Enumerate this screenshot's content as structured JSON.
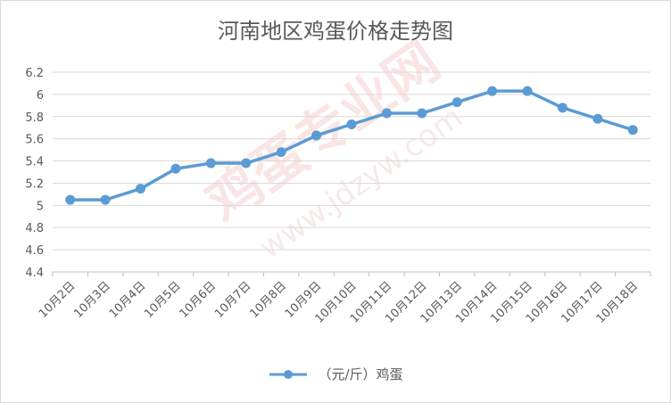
{
  "chart_data": {
    "type": "line",
    "title": "河南地区鸡蛋价格走势图",
    "categories": [
      "10月2日",
      "10月3日",
      "10月4日",
      "10月5日",
      "10月6日",
      "10月7日",
      "10月8日",
      "10月9日",
      "10月10日",
      "10月11日",
      "10月12日",
      "10月13日",
      "10月14日",
      "10月15日",
      "10月16日",
      "10月17日",
      "10月18日"
    ],
    "series": [
      {
        "name": "（元/斤）鸡蛋",
        "values": [
          5.05,
          5.05,
          5.15,
          5.33,
          5.38,
          5.38,
          5.48,
          5.63,
          5.73,
          5.83,
          5.83,
          5.93,
          6.03,
          6.03,
          5.88,
          5.78,
          5.68
        ]
      }
    ],
    "ylim": [
      4.4,
      6.2
    ],
    "yticks": [
      "4.4",
      "4.6",
      "4.8",
      "5",
      "5.2",
      "5.4",
      "5.6",
      "5.8",
      "6",
      "6.2"
    ],
    "grid": true,
    "legend_position": "bottom",
    "line_color": "#5b9bd5"
  },
  "watermark": {
    "text_cn": "鸡蛋专业网",
    "text_url": "www.jdzyw.com"
  }
}
